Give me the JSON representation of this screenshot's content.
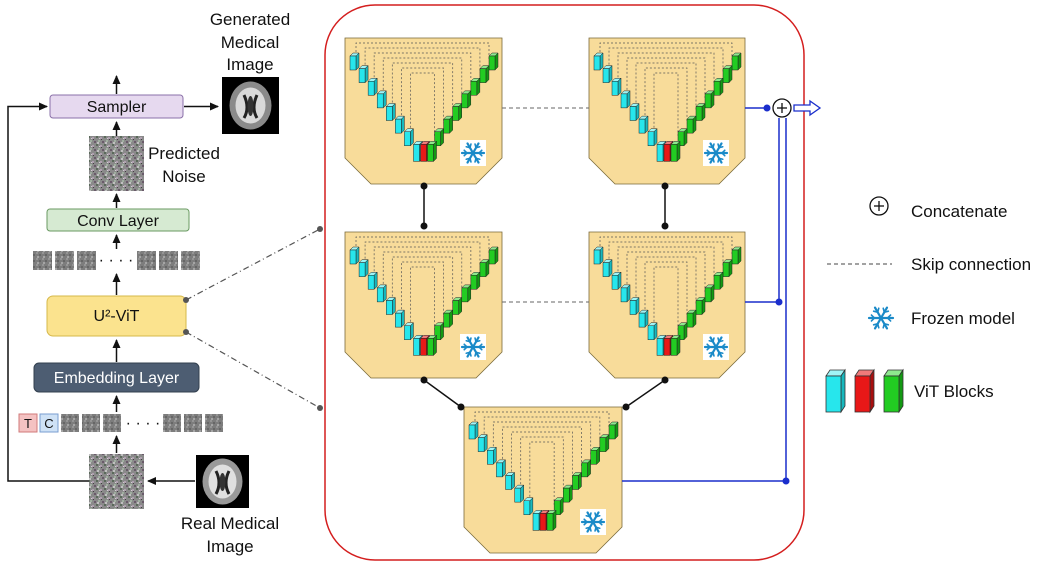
{
  "labels": {
    "generated": [
      "Generated",
      "Medical",
      "Image"
    ],
    "sampler": "Sampler",
    "predicted": [
      "Predicted",
      "Noise"
    ],
    "conv_layer": "Conv Layer",
    "u2vit": "U²-ViT",
    "embedding_layer": "Embedding Layer",
    "real": [
      "Real Medical",
      "Image"
    ],
    "token_t": "T",
    "token_c": "C",
    "dots": "· · · ·",
    "dots2": "· · · ·"
  },
  "legend": {
    "concatenate": "Concatenate",
    "skip": "Skip connection",
    "frozen": "Frozen model",
    "vit_blocks": "ViT Blocks"
  },
  "colors": {
    "sampler_fill": "#e6d9ef",
    "conv_fill": "#d6ead2",
    "u2vit_fill": "#fbe38e",
    "embed_fill": "#4d5d72",
    "unet_fill": "#f8dc9a",
    "cyan": "#27e6ec",
    "red": "#e81818",
    "green": "#22cc22",
    "blue_line": "#1a2ecc",
    "frame": "#d41e1e",
    "snowflake": "#1a8ac8"
  },
  "icons": [
    "snowflake-icon",
    "concatenate-icon",
    "brain-icon",
    "noise-icon",
    "arrow-icon"
  ]
}
